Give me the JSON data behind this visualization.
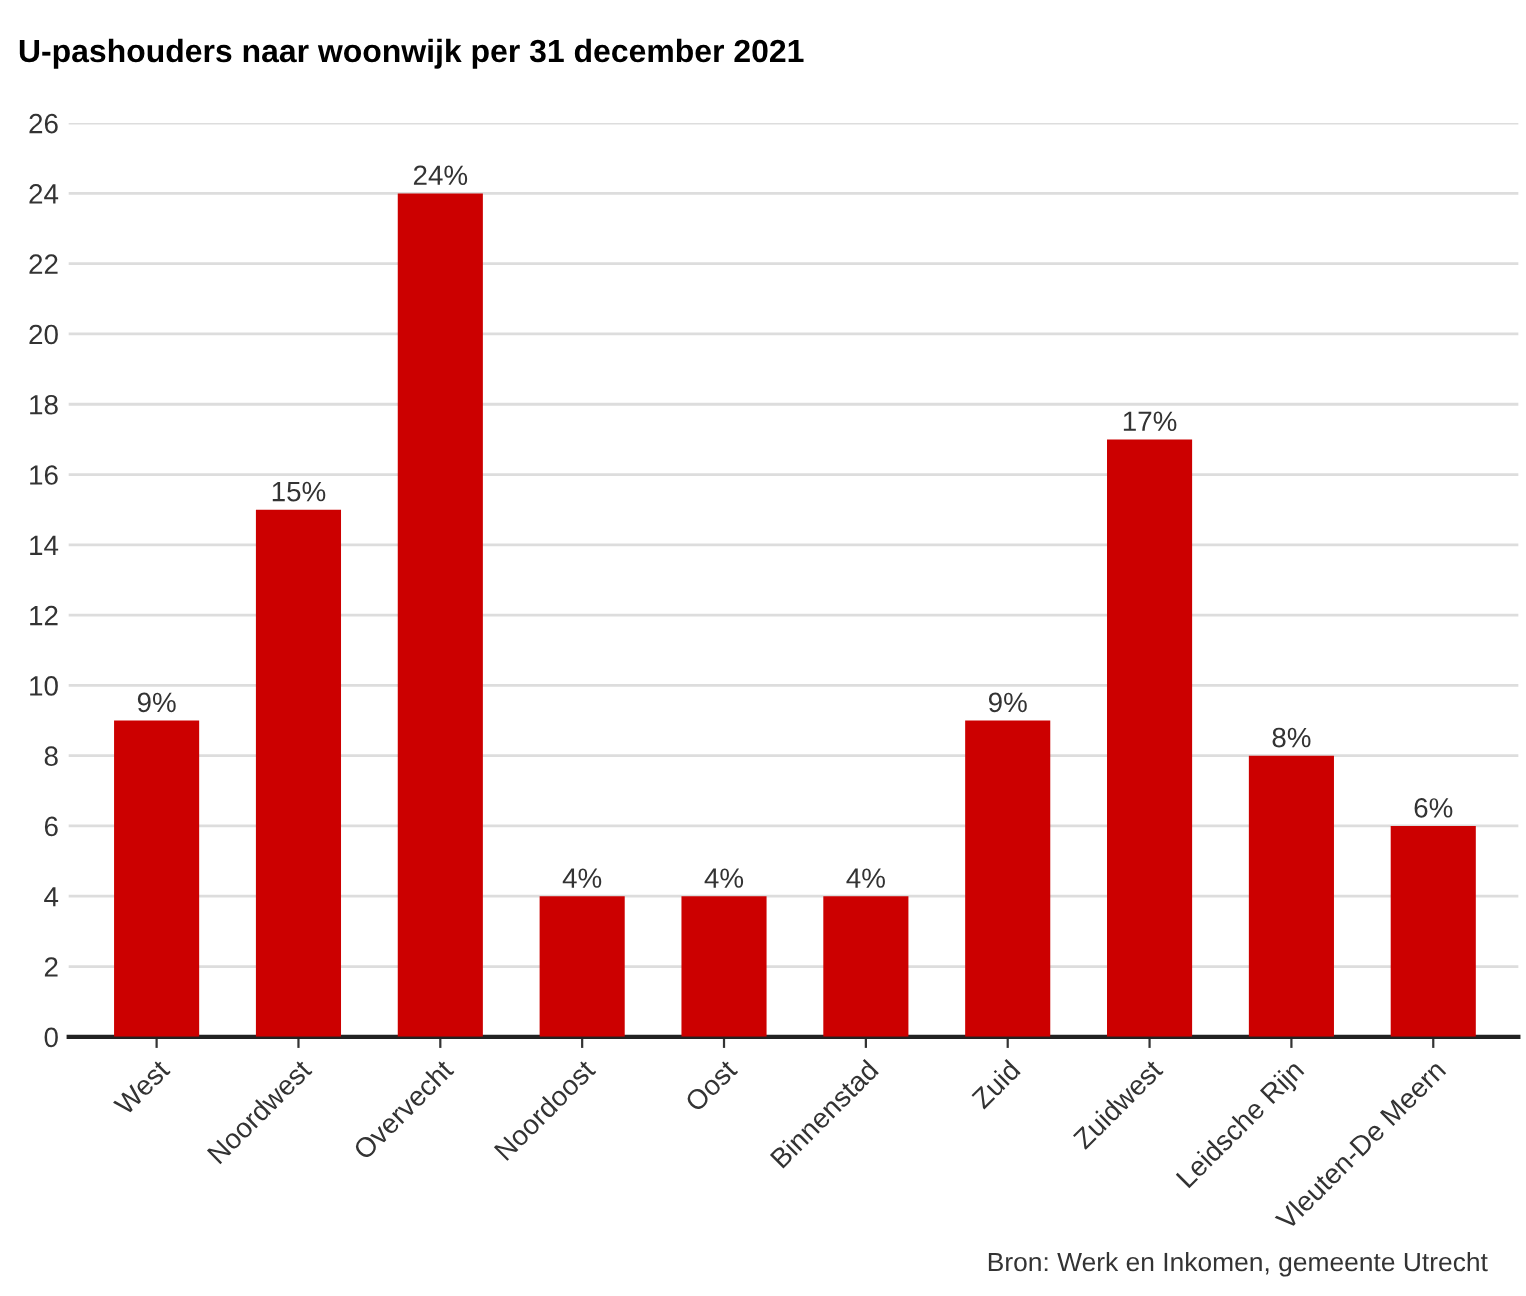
{
  "chart_data": {
    "type": "bar",
    "title": "U-pashouders naar woonwijk per 31 december 2021",
    "categories": [
      "West",
      "Noordwest",
      "Overvecht",
      "Noordoost",
      "Oost",
      "Binnenstad",
      "Zuid",
      "Zuidwest",
      "Leidsche Rijn",
      "Vleuten-De Meern"
    ],
    "values": [
      9,
      15,
      24,
      4,
      4,
      4,
      9,
      17,
      8,
      6
    ],
    "value_labels": [
      "9%",
      "15%",
      "24%",
      "4%",
      "4%",
      "4%",
      "9%",
      "17%",
      "8%",
      "6%"
    ],
    "color": "#cc0000",
    "ylim": [
      0,
      26
    ],
    "yticks": [
      0,
      2,
      4,
      6,
      8,
      10,
      12,
      14,
      16,
      18,
      20,
      22,
      24,
      26
    ],
    "grid": "y",
    "annotations": [
      "Bron: Werk en Inkomen, gemeente Utrecht"
    ]
  }
}
